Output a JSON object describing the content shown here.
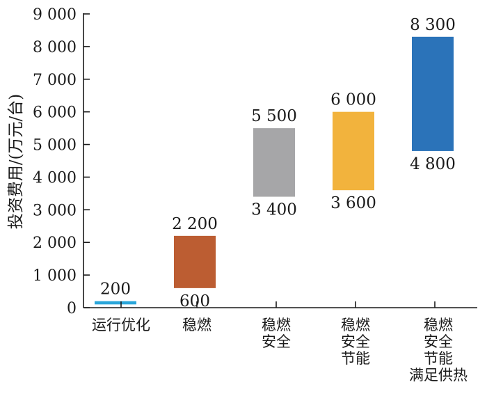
{
  "chart_data": {
    "type": "bar",
    "subtype": "floating-range",
    "title": "",
    "xlabel": "",
    "ylabel": "投资费用/(万元/台)",
    "ylim": [
      0,
      9000
    ],
    "yticks": [
      0,
      1000,
      2000,
      3000,
      4000,
      5000,
      6000,
      7000,
      8000,
      9000
    ],
    "ytick_labels": [
      "0",
      "1 000",
      "2 000",
      "3 000",
      "4 000",
      "5 000",
      "6 000",
      "7 000",
      "8 000",
      "9 000"
    ],
    "grid": false,
    "legend": "none",
    "categories": [
      {
        "label_lines": [
          "运行优化"
        ],
        "low": 100,
        "high": 200,
        "high_label": "200",
        "low_label": "",
        "color": "#2aa6da"
      },
      {
        "label_lines": [
          "稳燃"
        ],
        "low": 600,
        "high": 2200,
        "high_label": "2 200",
        "low_label": "600",
        "color": "#bc5d32"
      },
      {
        "label_lines": [
          "稳燃",
          "安全"
        ],
        "low": 3400,
        "high": 5500,
        "high_label": "5 500",
        "low_label": "3 400",
        "color": "#a6a6a8"
      },
      {
        "label_lines": [
          "稳燃",
          "安全",
          "节能"
        ],
        "low": 3600,
        "high": 6000,
        "high_label": "6 000",
        "low_label": "3 600",
        "color": "#f2b33d"
      },
      {
        "label_lines": [
          "稳燃",
          "安全",
          "节能",
          "满足供热"
        ],
        "low": 4800,
        "high": 8300,
        "high_label": "8 300",
        "low_label": "4 800",
        "color": "#2b73b9"
      }
    ]
  }
}
